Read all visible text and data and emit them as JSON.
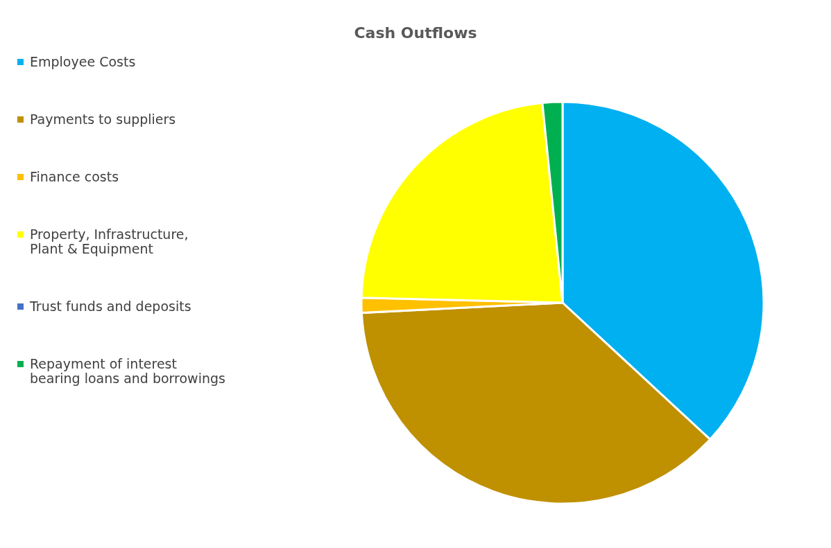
{
  "chart_data": {
    "type": "pie",
    "title": "Cash Outflows",
    "categories": [
      "Employee Costs",
      "Payments to suppliers",
      "Finance costs",
      "Property, Infrastructure, Plant & Equipment",
      "Trust funds and deposits",
      "Repayment of interest bearing loans and borrowings"
    ],
    "values": [
      36.9,
      37.3,
      1.2,
      23.0,
      null,
      1.6
    ],
    "colors": [
      "#00b0f0",
      "#bf9000",
      "#ffc000",
      "#ffff00",
      "#4472c4",
      "#00b050"
    ],
    "legend": "left"
  }
}
